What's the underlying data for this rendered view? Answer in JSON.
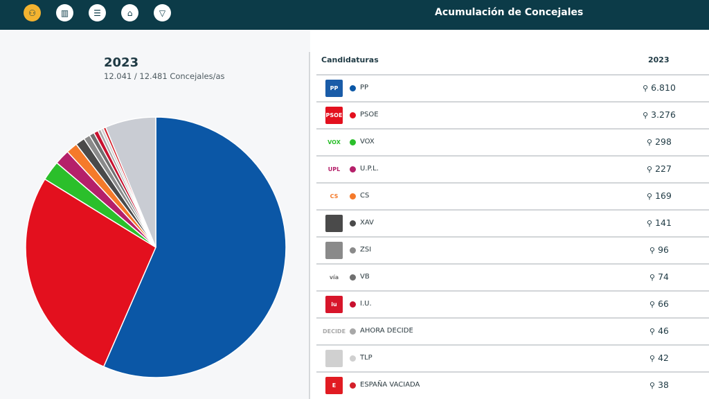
{
  "header": {
    "title": "Acumulación de Concejales",
    "nav": [
      {
        "icon": "people-icon",
        "active": true
      },
      {
        "icon": "bar-chart-icon"
      },
      {
        "icon": "list-icon"
      },
      {
        "icon": "building-icon"
      },
      {
        "icon": "map-spain-icon"
      }
    ]
  },
  "summary": {
    "year": "2023",
    "subtitle": "12.041 / 12.481 Concejales/as"
  },
  "table": {
    "col_party": "Candidaturas",
    "col_year": "2023",
    "rows": [
      {
        "name": "PP",
        "value": "6.810",
        "color": "#0b57a6",
        "logo": "PP",
        "logo_bg": "#1a5ca8"
      },
      {
        "name": "PSOE",
        "value": "3.276",
        "color": "#e3101e",
        "logo": "PSOE",
        "logo_bg": "#e3101e"
      },
      {
        "name": "VOX",
        "value": "298",
        "color": "#2bbf2b",
        "logo": "VOX",
        "logo_bg": ""
      },
      {
        "name": "U.P.L.",
        "value": "227",
        "color": "#b5206a",
        "logo": "UPL",
        "logo_bg": ""
      },
      {
        "name": "CS",
        "value": "169",
        "color": "#f57a2a",
        "logo": "CS",
        "logo_bg": ""
      },
      {
        "name": "XAV",
        "value": "141",
        "color": "#4a4a4a",
        "logo": "",
        "logo_bg": "#4a4a4a"
      },
      {
        "name": "ZSI",
        "value": "96",
        "color": "#8a8a8a",
        "logo": "",
        "logo_bg": "#8a8a8a"
      },
      {
        "name": "VB",
        "value": "74",
        "color": "#707070",
        "logo": "vía",
        "logo_bg": ""
      },
      {
        "name": "I.U.",
        "value": "66",
        "color": "#c8102e",
        "logo": "iu",
        "logo_bg": "#d7152a"
      },
      {
        "name": "AHORA DECIDE",
        "value": "46",
        "color": "#a8a8a8",
        "logo": "DECIDE",
        "logo_bg": ""
      },
      {
        "name": "TLP",
        "value": "42",
        "color": "#d0d0d0",
        "logo": "",
        "logo_bg": "#d0d0d0"
      },
      {
        "name": "ESPAÑA VACIADA",
        "value": "38",
        "color": "#d4202a",
        "logo": "E",
        "logo_bg": "#e11b22"
      }
    ]
  },
  "chart_data": {
    "type": "pie",
    "total": 12041,
    "others_color": "#c9ccd3",
    "labels": [
      "PP",
      "PSOE",
      "VOX",
      "U.P.L.",
      "CS",
      "XAV",
      "ZSI",
      "VB",
      "I.U.",
      "AHORA DECIDE",
      "TLP",
      "ESPAÑA VACIADA"
    ],
    "values": [
      6810,
      3276,
      298,
      227,
      169,
      141,
      96,
      74,
      66,
      46,
      42,
      38
    ]
  }
}
